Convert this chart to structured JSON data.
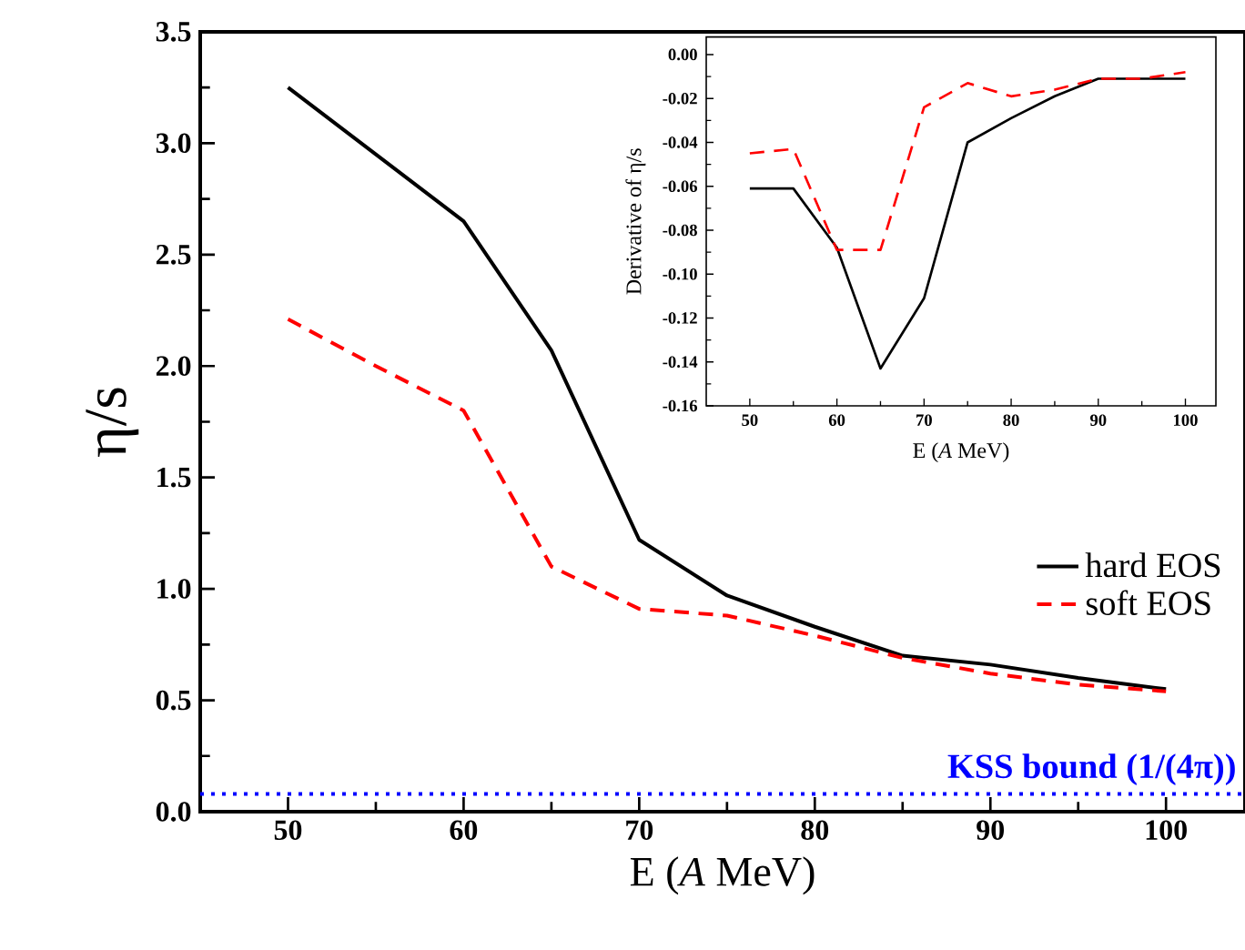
{
  "chart_data": [
    {
      "type": "line",
      "xlabel": "E (*A* MeV)",
      "ylabel": "η/s",
      "x": [
        50,
        55,
        60,
        65,
        70,
        75,
        80,
        85,
        90,
        95,
        100
      ],
      "series": [
        {
          "name": "hard EOS",
          "color": "#000000",
          "line_style": "solid",
          "values": [
            3.25,
            2.95,
            2.65,
            2.07,
            1.22,
            0.97,
            0.83,
            0.7,
            0.66,
            0.6,
            0.55
          ]
        },
        {
          "name": "soft EOS",
          "color": "#ff0000",
          "line_style": "dashed",
          "values": [
            2.21,
            2.0,
            1.8,
            1.1,
            0.91,
            0.88,
            0.79,
            0.69,
            0.62,
            0.57,
            0.54
          ]
        }
      ],
      "xlim": [
        45,
        104.5
      ],
      "ylim": [
        0,
        3.5
      ],
      "xticks": [
        50,
        60,
        70,
        80,
        90,
        100
      ],
      "yticks": [
        {
          "value": 0,
          "label": "0.0"
        },
        {
          "value": 0.5,
          "label": "0.5"
        },
        {
          "value": 1,
          "label": "1.0"
        },
        {
          "value": 1.5,
          "label": "1.5"
        },
        {
          "value": 2,
          "label": "2.0"
        },
        {
          "value": 2.5,
          "label": "2.5"
        },
        {
          "value": 3,
          "label": "3.0"
        },
        {
          "value": 3.5,
          "label": "3.5"
        }
      ],
      "ref_lines": [
        {
          "axis": "y",
          "value": 0.08,
          "label": "KSS bound (1/(4π))",
          "color": "#0000ff",
          "line_style": "dotted"
        }
      ],
      "legend": "right"
    },
    {
      "type": "line",
      "xlabel": "E (*A* MeV)",
      "ylabel": "Derivative of η/s",
      "x": [
        50,
        55,
        60,
        65,
        70,
        75,
        80,
        85,
        90,
        95,
        100
      ],
      "series": [
        {
          "color": "#000000",
          "line_style": "solid",
          "values": [
            -0.061,
            -0.061,
            -0.088,
            -0.143,
            -0.111,
            -0.04,
            -0.029,
            -0.019,
            -0.011,
            -0.011,
            -0.011
          ]
        },
        {
          "color": "#ff0000",
          "line_style": "dashed",
          "values": [
            -0.045,
            -0.043,
            -0.089,
            -0.089,
            -0.024,
            -0.013,
            -0.019,
            -0.016,
            -0.011,
            -0.011,
            -0.008
          ]
        }
      ],
      "xlim": [
        45,
        103.5
      ],
      "ylim": [
        -0.16,
        0.008
      ],
      "xticks": [
        50,
        60,
        70,
        80,
        90,
        100
      ],
      "yticks": [
        {
          "value": -0.16,
          "label": "-0.16"
        },
        {
          "value": -0.14,
          "label": "-0.14"
        },
        {
          "value": -0.12,
          "label": "-0.12"
        },
        {
          "value": -0.1,
          "label": "-0.10"
        },
        {
          "value": -0.08,
          "label": "-0.08"
        },
        {
          "value": -0.06,
          "label": "-0.06"
        },
        {
          "value": -0.04,
          "label": "-0.04"
        },
        {
          "value": -0.02,
          "label": "-0.02"
        },
        {
          "value": 0,
          "label": "0.00"
        }
      ]
    }
  ]
}
